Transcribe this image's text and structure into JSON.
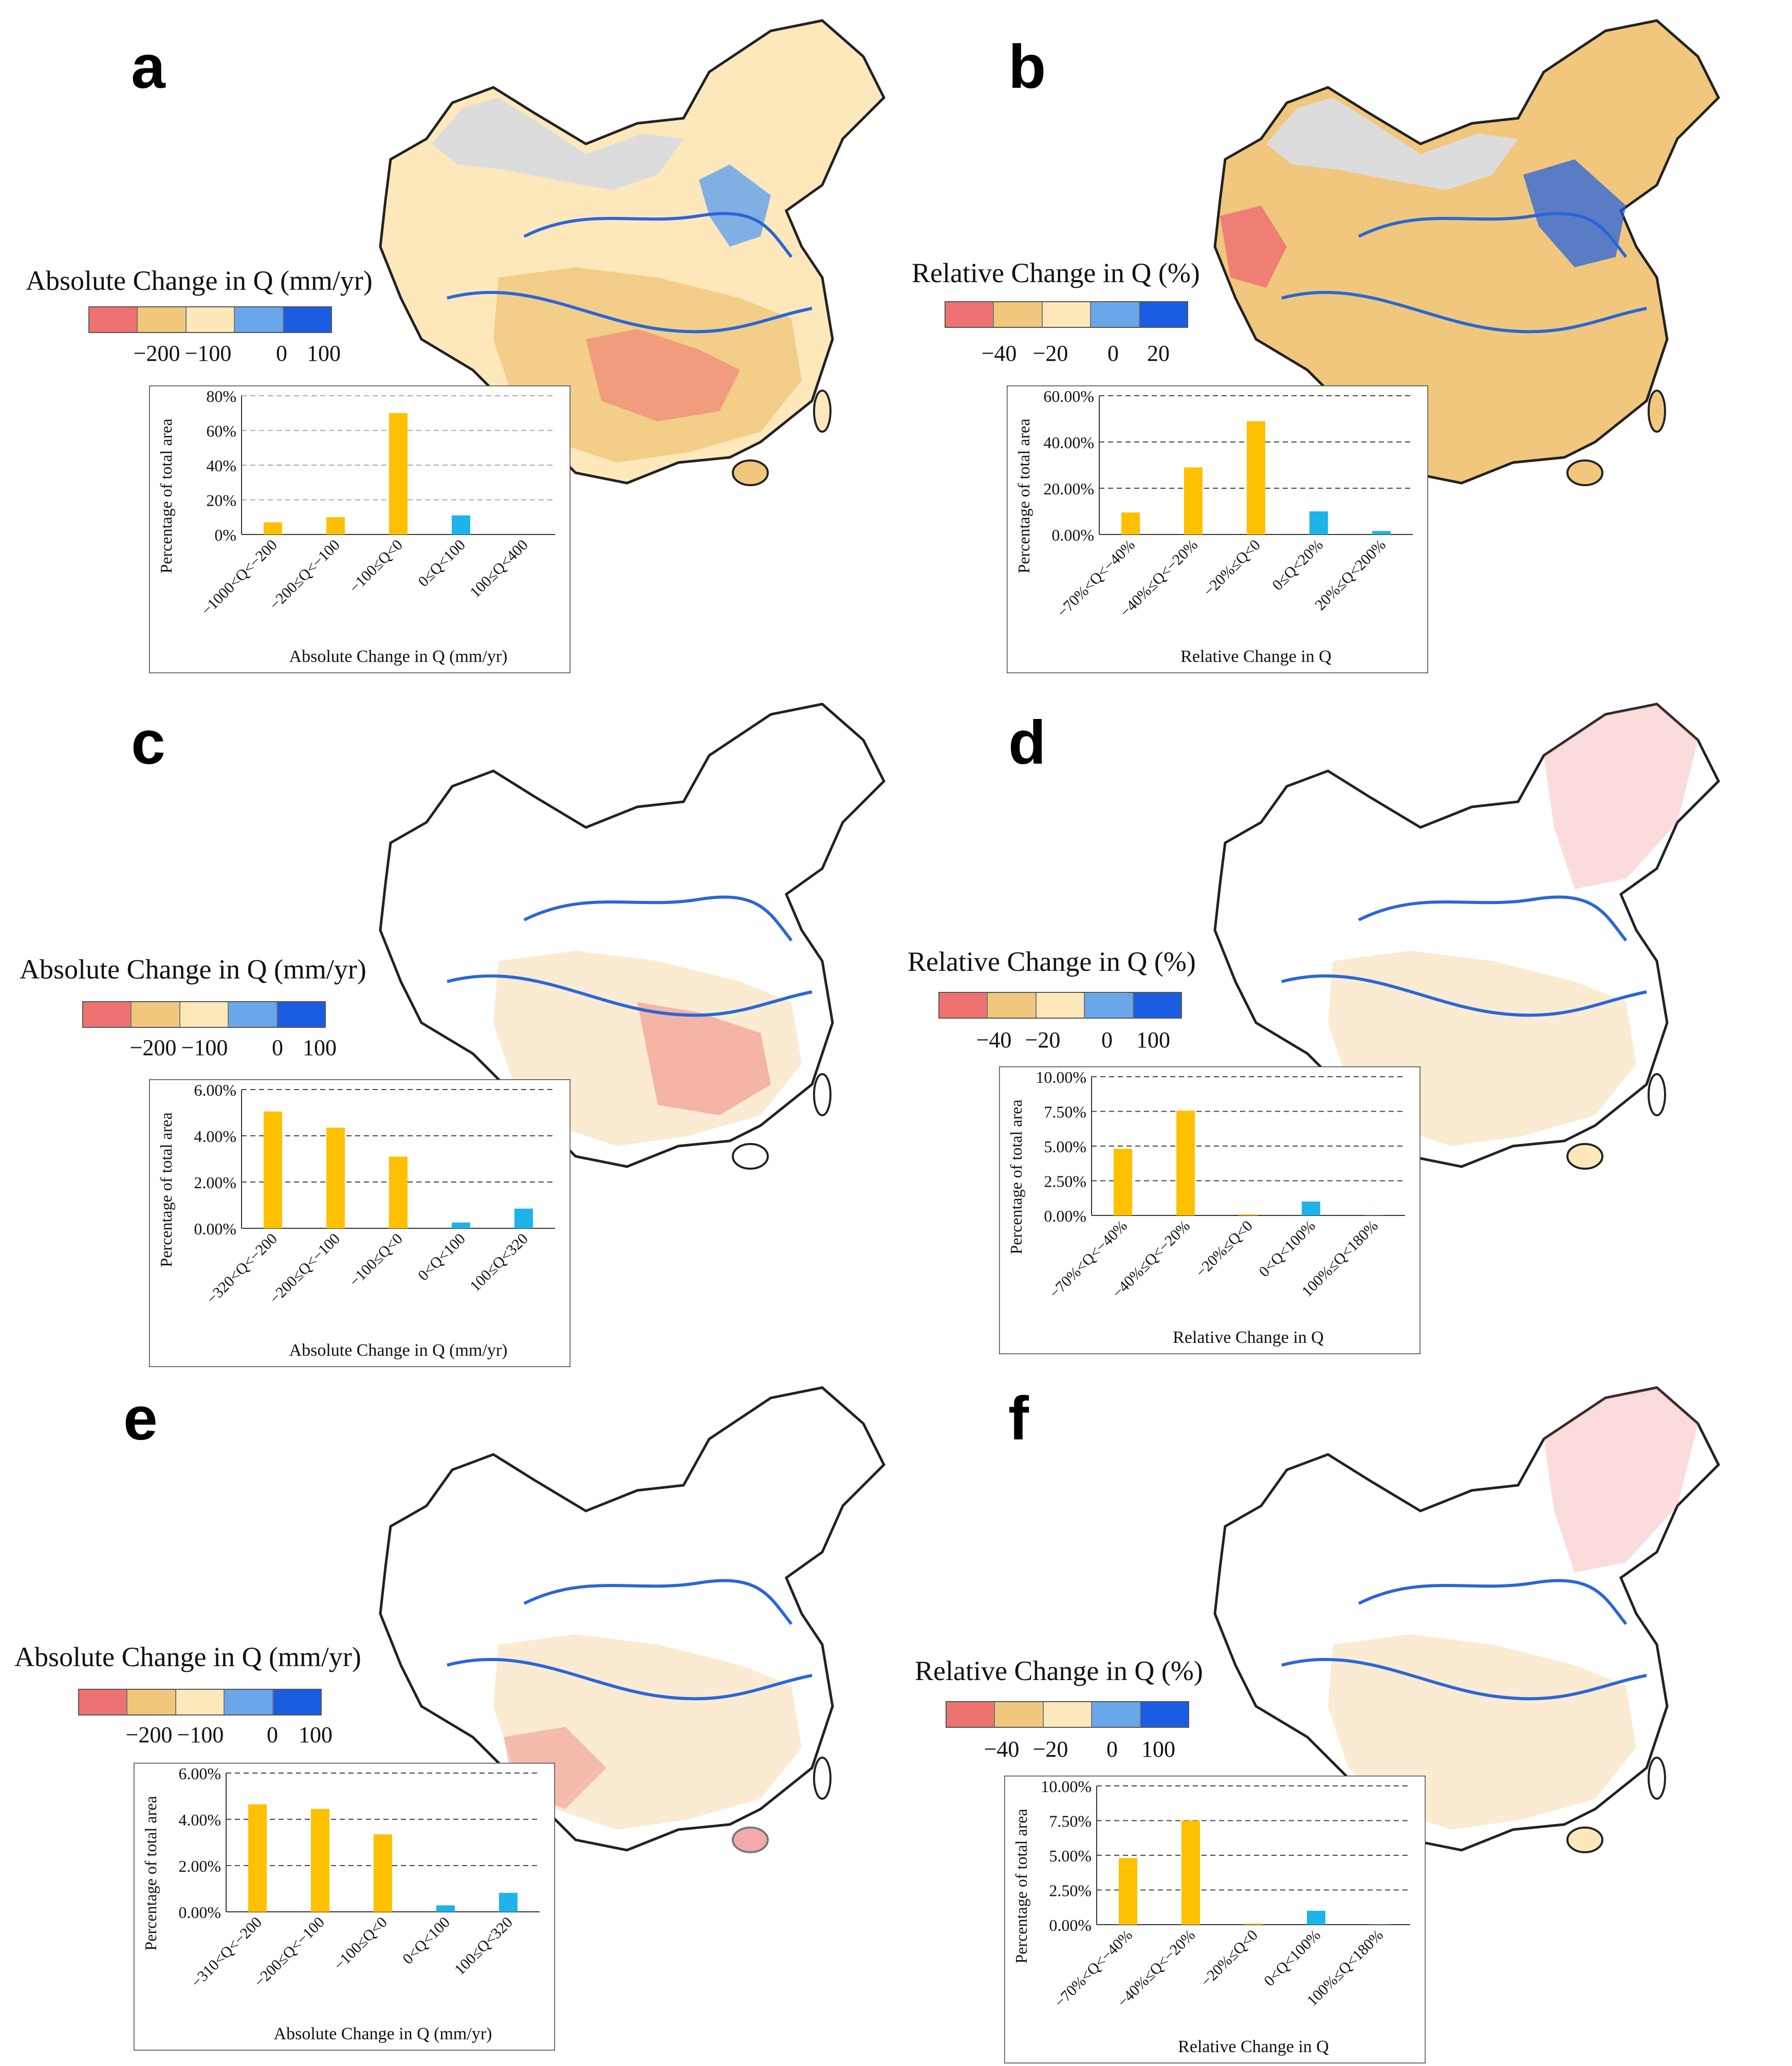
{
  "colors": {
    "scale": [
      "#ee7272",
      "#f0c77d",
      "#fde8bb",
      "#6aa6ea",
      "#1a5de3"
    ],
    "bar_neg": "#ffc000",
    "bar_pos": "#1fb3ea",
    "nodata": "#dcdcdc"
  },
  "panels": [
    {
      "letter": "a",
      "legend_title": "Absolute Change in Q (mm/yr)",
      "legend_ticks": [
        "−200",
        "−100",
        "0",
        "100"
      ]
    },
    {
      "letter": "b",
      "legend_title": "Relative Change in Q (%)",
      "legend_ticks": [
        "−40",
        "−20",
        "0",
        "20"
      ]
    },
    {
      "letter": "c",
      "legend_title": "Absolute Change in Q (mm/yr)",
      "legend_ticks": [
        "−200",
        "−100",
        "0",
        "100"
      ]
    },
    {
      "letter": "d",
      "legend_title": "Relative Change in Q (%)",
      "legend_ticks": [
        "−40",
        "−20",
        "0",
        "100"
      ]
    },
    {
      "letter": "e",
      "legend_title": "Absolute Change in Q (mm/yr)",
      "legend_ticks": [
        "−200",
        "−100",
        "0",
        "100"
      ]
    },
    {
      "letter": "f",
      "legend_title": "Relative Change in Q (%)",
      "legend_ticks": [
        "−40",
        "−20",
        "0",
        "100"
      ]
    }
  ],
  "chart_data": [
    {
      "type": "bar",
      "panel": "a",
      "ylabel": "Percentage of total area",
      "xlabel": "Absolute Change in Q (mm/yr)",
      "categories": [
        "−1000<Q<−200",
        "−200≤Q<−100",
        "−100≤Q<0",
        "0≤Q<100",
        "100≤Q<400"
      ],
      "values": [
        7,
        10,
        70,
        11,
        0
      ],
      "ylim": [
        0,
        80
      ],
      "yticks": [
        "0%",
        "20%",
        "40%",
        "60%",
        "80%"
      ],
      "grid": "dashed-gray"
    },
    {
      "type": "bar",
      "panel": "b",
      "ylabel": "Percentage of total area",
      "xlabel": "Relative Change in Q",
      "categories": [
        "−70%<Q<−40%",
        "−40%≤Q<−20%",
        "−20%≤Q<0",
        "0≤Q<20%",
        "20%≤Q<200%"
      ],
      "values": [
        9.5,
        29,
        49,
        10,
        1.5
      ],
      "ylim": [
        0,
        60
      ],
      "yticks": [
        "0.00%",
        "20.00%",
        "40.00%",
        "60.00%"
      ],
      "grid": "dashed"
    },
    {
      "type": "bar",
      "panel": "c",
      "ylabel": "Percentage of total area",
      "xlabel": "Absolute Change in Q (mm/yr)",
      "categories": [
        "−320<Q<−200",
        "−200≤Q<−100",
        "−100≤Q<0",
        "0<Q<100",
        "100≤Q<320"
      ],
      "values": [
        5.05,
        4.35,
        3.1,
        0.25,
        0.85
      ],
      "ylim": [
        0,
        6
      ],
      "yticks": [
        "0.00%",
        "2.00%",
        "4.00%",
        "6.00%"
      ],
      "grid": "dashed"
    },
    {
      "type": "bar",
      "panel": "d",
      "ylabel": "Percentage of total area",
      "xlabel": "Relative Change in Q",
      "categories": [
        "−70%<Q<−40%",
        "−40%≤Q<−20%",
        "−20%≤Q<0",
        "0<Q<100%",
        "100%≤Q<180%"
      ],
      "values": [
        4.8,
        7.55,
        0.08,
        1.0,
        0.02
      ],
      "ylim": [
        0,
        10
      ],
      "yticks": [
        "0.00%",
        "2.50%",
        "5.00%",
        "7.50%",
        "10.00%"
      ],
      "grid": "dashed"
    },
    {
      "type": "bar",
      "panel": "e",
      "ylabel": "Percentage of total area",
      "xlabel": "Absolute Change in Q (mm/yr)",
      "categories": [
        "−310<Q<−200",
        "−200≤Q<−100",
        "−100≤Q<0",
        "0<Q<100",
        "100≤Q<320"
      ],
      "values": [
        4.65,
        4.45,
        3.35,
        0.28,
        0.82
      ],
      "ylim": [
        0,
        6
      ],
      "yticks": [
        "0.00%",
        "2.00%",
        "4.00%",
        "6.00%"
      ],
      "grid": "dashed"
    },
    {
      "type": "bar",
      "panel": "f",
      "ylabel": "Percentage of total area",
      "xlabel": "Relative Change in Q",
      "categories": [
        "−70%<Q<−40%",
        "−40%≤Q<−20%",
        "−20%≤Q<0",
        "0<Q<100%",
        "100%≤Q<180%"
      ],
      "values": [
        4.8,
        7.5,
        0.08,
        1.0,
        0.02
      ],
      "ylim": [
        0,
        10
      ],
      "yticks": [
        "0.00%",
        "2.50%",
        "5.00%",
        "7.50%",
        "10.00%"
      ],
      "grid": "dashed"
    }
  ]
}
